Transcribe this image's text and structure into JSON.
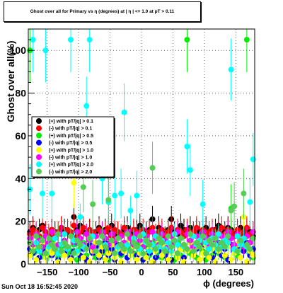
{
  "title": "Ghost over all for Primary vs η (degrees) at | η | <= 1.0 at pT > 0.11",
  "footer_text": "Sun Oct 18 16:52:45 2020",
  "chart_data": {
    "type": "scatter",
    "title": "Ghost over all for Primary vs η (degrees) at | η | <= 1.0 at pT > 0.11",
    "xlabel": "ϕ (degrees)",
    "ylabel": "Ghost over all(%)",
    "xlim": [
      -180,
      180
    ],
    "ylim": [
      0,
      110
    ],
    "x_ticks": [
      -150,
      -100,
      -50,
      0,
      50,
      100,
      150
    ],
    "y_ticks": [
      0,
      20,
      40,
      60,
      80,
      100
    ],
    "grid": true,
    "legend_position": "left-middle",
    "series": [
      {
        "name": "(+) with pT/|q| > 0.1",
        "color": "#000000",
        "bin_width": 5,
        "x": [
          -177.5,
          -172.5,
          -167.5,
          -162.5,
          -157.5,
          -152.5,
          -147.5,
          -142.5,
          -137.5,
          -132.5,
          -127.5,
          -122.5,
          -117.5,
          -112.5,
          -107.5,
          -102.5,
          -97.5,
          -92.5,
          -87.5,
          -82.5,
          -77.5,
          -72.5,
          -67.5,
          -62.5,
          -57.5,
          -52.5,
          -47.5,
          -42.5,
          -37.5,
          -32.5,
          -27.5,
          -22.5,
          -17.5,
          -12.5,
          -7.5,
          -2.5,
          2.5,
          7.5,
          12.5,
          17.5,
          22.5,
          27.5,
          32.5,
          37.5,
          42.5,
          47.5,
          52.5,
          57.5,
          62.5,
          67.5,
          72.5,
          77.5,
          82.5,
          87.5,
          92.5,
          97.5,
          102.5,
          107.5,
          112.5,
          117.5,
          122.5,
          127.5,
          132.5,
          137.5,
          142.5,
          147.5,
          152.5,
          157.5,
          162.5,
          167.5,
          172.5,
          177.5
        ],
        "y": [
          15,
          17,
          14,
          16,
          18,
          15,
          13,
          16,
          15,
          14,
          17,
          16,
          15,
          14,
          22,
          16,
          18,
          15,
          14,
          16,
          13,
          15,
          17,
          14,
          16,
          15,
          18,
          14,
          15,
          13,
          16,
          17,
          14,
          15,
          16,
          18,
          14,
          15,
          16,
          21,
          14,
          17,
          15,
          13,
          16,
          21,
          15,
          14,
          18,
          16,
          15,
          17,
          14,
          16,
          15,
          13,
          17,
          14,
          15,
          16,
          18,
          14,
          15,
          17,
          16,
          14,
          15,
          17,
          14,
          16,
          15,
          13
        ]
      },
      {
        "name": "(-) with pT/|q| > 0.1",
        "color": "#ff0000",
        "bin_width": 5,
        "x": [
          -177.5,
          -172.5,
          -167.5,
          -162.5,
          -157.5,
          -152.5,
          -147.5,
          -142.5,
          -137.5,
          -132.5,
          -127.5,
          -122.5,
          -117.5,
          -112.5,
          -107.5,
          -102.5,
          -97.5,
          -92.5,
          -87.5,
          -82.5,
          -77.5,
          -72.5,
          -67.5,
          -62.5,
          -57.5,
          -52.5,
          -47.5,
          -42.5,
          -37.5,
          -32.5,
          -27.5,
          -22.5,
          -17.5,
          -12.5,
          -7.5,
          -2.5,
          2.5,
          7.5,
          12.5,
          17.5,
          22.5,
          27.5,
          32.5,
          37.5,
          42.5,
          47.5,
          52.5,
          57.5,
          62.5,
          67.5,
          72.5,
          77.5,
          82.5,
          87.5,
          92.5,
          97.5,
          102.5,
          107.5,
          112.5,
          117.5,
          122.5,
          127.5,
          132.5,
          137.5,
          142.5,
          147.5,
          152.5,
          157.5,
          162.5,
          167.5,
          172.5,
          177.5
        ],
        "y": [
          14,
          16,
          15,
          13,
          17,
          15,
          14,
          16,
          13,
          15,
          17,
          14,
          16,
          15,
          18,
          13,
          15,
          17,
          14,
          16,
          15,
          13,
          16,
          14,
          15,
          17,
          13,
          16,
          15,
          14,
          17,
          15,
          13,
          16,
          15,
          14,
          16,
          13,
          15,
          17,
          14,
          15,
          16,
          13,
          15,
          17,
          14,
          16,
          15,
          13,
          16,
          14,
          15,
          17,
          13,
          16,
          14,
          15,
          16,
          13,
          15,
          17,
          14,
          16,
          15,
          13,
          16,
          14,
          15,
          17,
          14,
          15
        ]
      },
      {
        "name": "(+) with pT/|q| > 0.5",
        "color": "#00ee00",
        "bin_width": 5,
        "x": [
          -177.5,
          -172.5,
          -167.5,
          -162.5,
          -157.5,
          -152.5,
          -147.5,
          -142.5,
          -137.5,
          -132.5,
          -127.5,
          -122.5,
          -117.5,
          -112.5,
          -107.5,
          -102.5,
          -97.5,
          -92.5,
          -87.5,
          -82.5,
          -77.5,
          -72.5,
          -67.5,
          -62.5,
          -57.5,
          -52.5,
          -47.5,
          -42.5,
          -37.5,
          -32.5,
          -27.5,
          -22.5,
          -17.5,
          -12.5,
          -7.5,
          -2.5,
          2.5,
          7.5,
          12.5,
          17.5,
          22.5,
          27.5,
          32.5,
          37.5,
          42.5,
          47.5,
          52.5,
          57.5,
          62.5,
          67.5,
          72.5,
          77.5,
          82.5,
          87.5,
          92.5,
          97.5,
          102.5,
          107.5,
          112.5,
          117.5,
          122.5,
          127.5,
          132.5,
          137.5,
          142.5,
          147.5,
          152.5,
          157.5,
          162.5,
          167.5,
          172.5,
          177.5
        ],
        "y": [
          100,
          8,
          6,
          12,
          5,
          9,
          4,
          10,
          7,
          3,
          8,
          11,
          5,
          6,
          9,
          2,
          7,
          10,
          4,
          8,
          6,
          3,
          9,
          5,
          7,
          2,
          11,
          6,
          8,
          4,
          10,
          3,
          7,
          5,
          9,
          6,
          2,
          8,
          4,
          10,
          7,
          5,
          3,
          9,
          6,
          8,
          2,
          10,
          4,
          7,
          105,
          5,
          9,
          3,
          8,
          6,
          2,
          10,
          4,
          7,
          5,
          9,
          3,
          8,
          26,
          6,
          4,
          10,
          7,
          105,
          5,
          3
        ]
      },
      {
        "name": "(-) with pT/|q| > 0.5",
        "color": "#0000ff",
        "bin_width": 5,
        "x": [
          -177.5,
          -172.5,
          -167.5,
          -162.5,
          -157.5,
          -152.5,
          -147.5,
          -142.5,
          -137.5,
          -132.5,
          -127.5,
          -122.5,
          -117.5,
          -112.5,
          -107.5,
          -102.5,
          -97.5,
          -92.5,
          -87.5,
          -82.5,
          -77.5,
          -72.5,
          -67.5,
          -62.5,
          -57.5,
          -52.5,
          -47.5,
          -42.5,
          -37.5,
          -32.5,
          -27.5,
          -22.5,
          -17.5,
          -12.5,
          -7.5,
          -2.5,
          2.5,
          7.5,
          12.5,
          17.5,
          22.5,
          27.5,
          32.5,
          37.5,
          42.5,
          47.5,
          52.5,
          57.5,
          62.5,
          67.5,
          72.5,
          77.5,
          82.5,
          87.5,
          92.5,
          97.5,
          102.5,
          107.5,
          112.5,
          117.5,
          122.5,
          127.5,
          132.5,
          137.5,
          142.5,
          147.5,
          152.5,
          157.5,
          162.5,
          167.5,
          172.5,
          177.5
        ],
        "y": [
          7,
          5,
          9,
          3,
          8,
          6,
          10,
          4,
          7,
          2,
          9,
          5,
          8,
          3,
          6,
          10,
          4,
          7,
          2,
          9,
          5,
          8,
          3,
          6,
          10,
          4,
          7,
          2,
          9,
          5,
          8,
          3,
          6,
          10,
          4,
          7,
          2,
          9,
          5,
          8,
          3,
          6,
          10,
          4,
          7,
          2,
          9,
          5,
          8,
          3,
          6,
          10,
          4,
          7,
          2,
          9,
          5,
          8,
          3,
          6,
          10,
          4,
          7,
          2,
          9,
          5,
          8,
          3,
          6,
          10,
          4,
          7
        ]
      },
      {
        "name": "(+) with pT/|q| > 1.0",
        "color": "#ffff00",
        "bin_width": 5,
        "x": [
          -177.5,
          -172.5,
          -167.5,
          -162.5,
          -157.5,
          -152.5,
          -147.5,
          -142.5,
          -137.5,
          -132.5,
          -127.5,
          -122.5,
          -117.5,
          -112.5,
          -107.5,
          -102.5,
          -97.5,
          -92.5,
          -87.5,
          -82.5,
          -77.5,
          -72.5,
          -67.5,
          -62.5,
          -57.5,
          -52.5,
          -47.5,
          -42.5,
          -37.5,
          -32.5,
          -27.5,
          -22.5,
          -17.5,
          -12.5,
          -7.5,
          -2.5,
          2.5,
          7.5,
          12.5,
          17.5,
          22.5,
          27.5,
          32.5,
          37.5,
          42.5,
          47.5,
          52.5,
          57.5,
          62.5,
          67.5,
          72.5,
          77.5,
          82.5,
          87.5,
          92.5,
          97.5,
          102.5,
          107.5,
          112.5,
          117.5,
          122.5,
          127.5,
          132.5,
          137.5,
          142.5,
          147.5,
          152.5,
          157.5,
          162.5,
          167.5,
          172.5,
          177.5
        ],
        "y": [
          4,
          8,
          2,
          6,
          10,
          3,
          7,
          5,
          9,
          1,
          6,
          4,
          8,
          2,
          38,
          5,
          9,
          3,
          7,
          1,
          6,
          10,
          4,
          8,
          2,
          5,
          9,
          3,
          7,
          1,
          6,
          10,
          4,
          8,
          2,
          5,
          9,
          3,
          7,
          1,
          6,
          10,
          4,
          8,
          2,
          5,
          9,
          3,
          7,
          1,
          6,
          10,
          4,
          8,
          2,
          5,
          9,
          3,
          7,
          1,
          6,
          10,
          4,
          8,
          2,
          5,
          9,
          3,
          22,
          1,
          6,
          4
        ]
      },
      {
        "name": "(-) with pT/|q| > 1.0",
        "color": "#ff00ff",
        "bin_width": 5,
        "x": [
          -177.5,
          -172.5,
          -167.5,
          -162.5,
          -157.5,
          -152.5,
          -147.5,
          -142.5,
          -137.5,
          -132.5,
          -127.5,
          -122.5,
          -117.5,
          -112.5,
          -107.5,
          -102.5,
          -97.5,
          -92.5,
          -87.5,
          -82.5,
          -77.5,
          -72.5,
          -67.5,
          -62.5,
          -57.5,
          -52.5,
          -47.5,
          -42.5,
          -37.5,
          -32.5,
          -27.5,
          -22.5,
          -17.5,
          -12.5,
          -7.5,
          -2.5,
          2.5,
          7.5,
          12.5,
          17.5,
          22.5,
          27.5,
          32.5,
          37.5,
          42.5,
          47.5,
          52.5,
          57.5,
          62.5,
          67.5,
          72.5,
          77.5,
          82.5,
          87.5,
          92.5,
          97.5,
          102.5,
          107.5,
          112.5,
          117.5,
          122.5,
          127.5,
          132.5,
          137.5,
          142.5,
          147.5,
          152.5,
          157.5,
          162.5,
          167.5,
          172.5,
          177.5
        ],
        "y": [
          12,
          9,
          14,
          11,
          8,
          13,
          10,
          15,
          12,
          9,
          14,
          11,
          8,
          13,
          10,
          15,
          12,
          9,
          14,
          11,
          8,
          13,
          10,
          15,
          12,
          9,
          14,
          11,
          8,
          13,
          10,
          15,
          12,
          9,
          14,
          11,
          8,
          13,
          10,
          15,
          12,
          9,
          14,
          11,
          8,
          13,
          10,
          15,
          12,
          9,
          14,
          11,
          8,
          13,
          10,
          15,
          12,
          9,
          14,
          11,
          8,
          13,
          10,
          15,
          12,
          9,
          14,
          11,
          8,
          13,
          10,
          15
        ]
      },
      {
        "name": "(+) with pT/|q| > 2.0",
        "color": "#00ffff",
        "bin_width": 5,
        "x": [
          -177.5,
          -172.5,
          -167.5,
          -162.5,
          -157.5,
          -152.5,
          -147.5,
          -142.5,
          -137.5,
          -132.5,
          -127.5,
          -122.5,
          -117.5,
          -112.5,
          -107.5,
          -102.5,
          -97.5,
          -92.5,
          -87.5,
          -82.5,
          -77.5,
          -72.5,
          -67.5,
          -62.5,
          -57.5,
          -52.5,
          -47.5,
          -42.5,
          -37.5,
          -32.5,
          -27.5,
          -22.5,
          -17.5,
          -12.5,
          -7.5,
          -2.5,
          2.5,
          7.5,
          12.5,
          17.5,
          22.5,
          27.5,
          32.5,
          37.5,
          42.5,
          47.5,
          52.5,
          57.5,
          62.5,
          67.5,
          72.5,
          77.5,
          82.5,
          87.5,
          92.5,
          97.5,
          102.5,
          107.5,
          112.5,
          117.5,
          122.5,
          127.5,
          132.5,
          137.5,
          142.5,
          147.5,
          152.5,
          157.5,
          162.5,
          167.5,
          172.5,
          177.5
        ],
        "y": [
          35,
          105,
          10,
          6,
          33,
          100,
          8,
          33,
          12,
          5,
          9,
          14,
          7,
          105,
          11,
          6,
          22,
          8,
          74,
          105,
          13,
          6,
          10,
          40,
          9,
          29,
          11,
          32,
          8,
          33,
          71,
          9,
          25,
          12,
          32,
          7,
          14,
          10,
          6,
          9,
          13,
          8,
          11,
          7,
          10,
          6,
          14,
          9,
          12,
          8,
          55,
          44,
          13,
          9,
          11,
          28,
          10,
          7,
          12,
          9,
          14,
          8,
          11,
          10,
          91,
          7,
          13,
          9,
          12,
          8,
          29,
          49
        ]
      },
      {
        "name": "(-) with pT/|q| > 2.0",
        "color": "#55cc55",
        "bin_width": 5,
        "x": [
          -177.5,
          -172.5,
          -167.5,
          -162.5,
          -157.5,
          -152.5,
          -147.5,
          -142.5,
          -137.5,
          -132.5,
          -127.5,
          -122.5,
          -117.5,
          -112.5,
          -107.5,
          -102.5,
          -97.5,
          -92.5,
          -87.5,
          -82.5,
          -77.5,
          -72.5,
          -67.5,
          -62.5,
          -57.5,
          -52.5,
          -47.5,
          -42.5,
          -37.5,
          -32.5,
          -27.5,
          -22.5,
          -17.5,
          -12.5,
          -7.5,
          -2.5,
          2.5,
          7.5,
          12.5,
          17.5,
          22.5,
          27.5,
          32.5,
          37.5,
          42.5,
          47.5,
          52.5,
          57.5,
          62.5,
          67.5,
          72.5,
          77.5,
          82.5,
          87.5,
          92.5,
          97.5,
          102.5,
          107.5,
          112.5,
          117.5,
          122.5,
          127.5,
          132.5,
          137.5,
          142.5,
          147.5,
          152.5,
          157.5,
          162.5,
          167.5,
          172.5,
          177.5
        ],
        "y": [
          10,
          6,
          13,
          8,
          11,
          5,
          12,
          9,
          7,
          14,
          6,
          10,
          8,
          13,
          5,
          11,
          9,
          36,
          7,
          12,
          28,
          6,
          10,
          13,
          8,
          30,
          11,
          5,
          12,
          9,
          7,
          14,
          6,
          10,
          8,
          13,
          5,
          11,
          9,
          45,
          7,
          12,
          10,
          6,
          13,
          8,
          11,
          5,
          12,
          9,
          7,
          14,
          6,
          10,
          8,
          13,
          5,
          11,
          9,
          12,
          7,
          10,
          8,
          13,
          25,
          27,
          6,
          11,
          33,
          9,
          7,
          12
        ]
      }
    ]
  }
}
